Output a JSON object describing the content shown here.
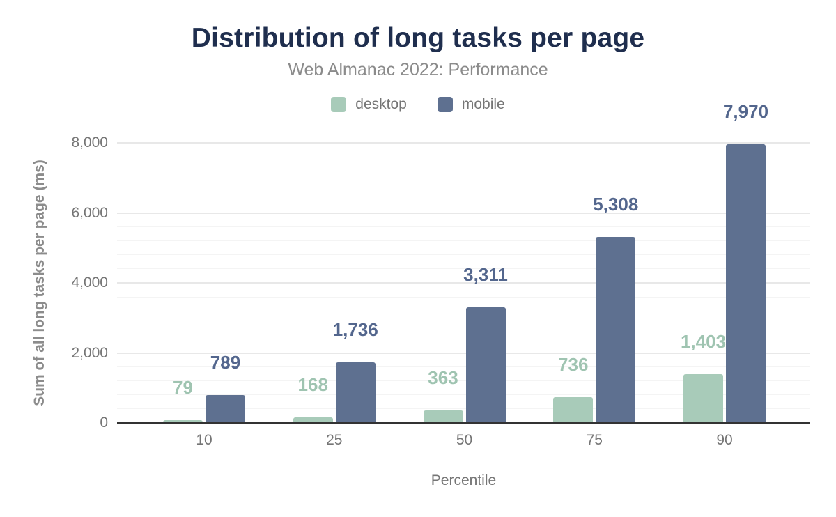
{
  "chart_data": {
    "type": "bar",
    "title": "Distribution of long tasks per page",
    "subtitle": "Web Almanac 2022: Performance",
    "categories": [
      "10",
      "25",
      "50",
      "75",
      "90"
    ],
    "series": [
      {
        "name": "desktop",
        "values": [
          79,
          168,
          363,
          736,
          1403
        ],
        "data_labels": [
          "79",
          "168",
          "363",
          "736",
          "1,403"
        ],
        "color": "#a8cbb9",
        "label_color": "#9fc4b1"
      },
      {
        "name": "mobile",
        "values": [
          789,
          1736,
          3311,
          5308,
          7970
        ],
        "data_labels": [
          "789",
          "1,736",
          "3,311",
          "5,308",
          "7,970"
        ],
        "color": "#5e7090",
        "label_color": "#53668d"
      }
    ],
    "xlabel": "Percentile",
    "ylabel": "Sum of all long tasks per page (ms)",
    "ylim": [
      0,
      8000
    ],
    "y_ticks": [
      {
        "value": 0,
        "label": "0"
      },
      {
        "value": 2000,
        "label": "2,000"
      },
      {
        "value": 4000,
        "label": "4,000"
      },
      {
        "value": 6000,
        "label": "6,000"
      },
      {
        "value": 8000,
        "label": "8,000"
      }
    ],
    "grid": {
      "orientation": "horizontal",
      "major_step": 2000,
      "minor_step": 400
    },
    "legend_position": "top"
  },
  "colors": {
    "title_text": "#1f2e4e",
    "subtitle_text": "#8b8b8b",
    "axis_text": "#757575",
    "axis_line": "#333333",
    "grid_major": "#e8e8e8",
    "grid_minor": "#f4f4f4",
    "background": "#ffffff"
  }
}
